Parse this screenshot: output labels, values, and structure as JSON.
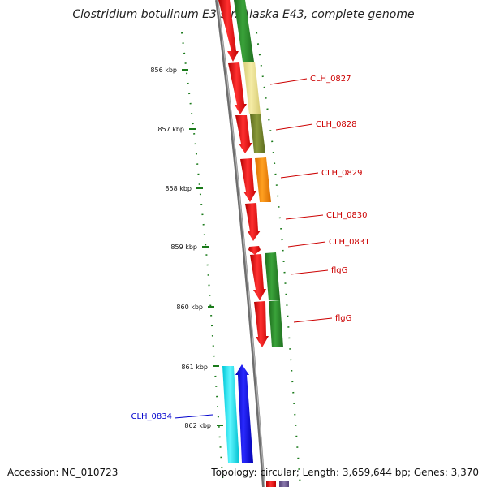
{
  "title": "Clostridium botulinum E3 str. Alaska E43, complete genome",
  "footer": {
    "accession": "Accession: NC_010723",
    "summary": "Topology: circular; Length: 3,659,644 bp; Genes: 3,370"
  },
  "colors": {
    "backbone": "#8a8a8a",
    "ticks": "#1a7a1a",
    "label_red": "#cc0000",
    "label_blue": "#0000cc"
  },
  "ticks": [
    "856 kbp",
    "857 kbp",
    "858 kbp",
    "859 kbp",
    "860 kbp",
    "861 kbp",
    "862 kbp"
  ],
  "gene_labels": [
    {
      "text": "CLH_0827",
      "color": "#cc0000"
    },
    {
      "text": "CLH_0828",
      "color": "#cc0000"
    },
    {
      "text": "CLH_0829",
      "color": "#cc0000"
    },
    {
      "text": "CLH_0830",
      "color": "#cc0000"
    },
    {
      "text": "CLH_0831",
      "color": "#cc0000"
    },
    {
      "text": "flgG",
      "color": "#cc0000"
    },
    {
      "text": "flgG",
      "color": "#cc0000"
    },
    {
      "text": "CLH_0834",
      "color": "#0000cc"
    }
  ]
}
